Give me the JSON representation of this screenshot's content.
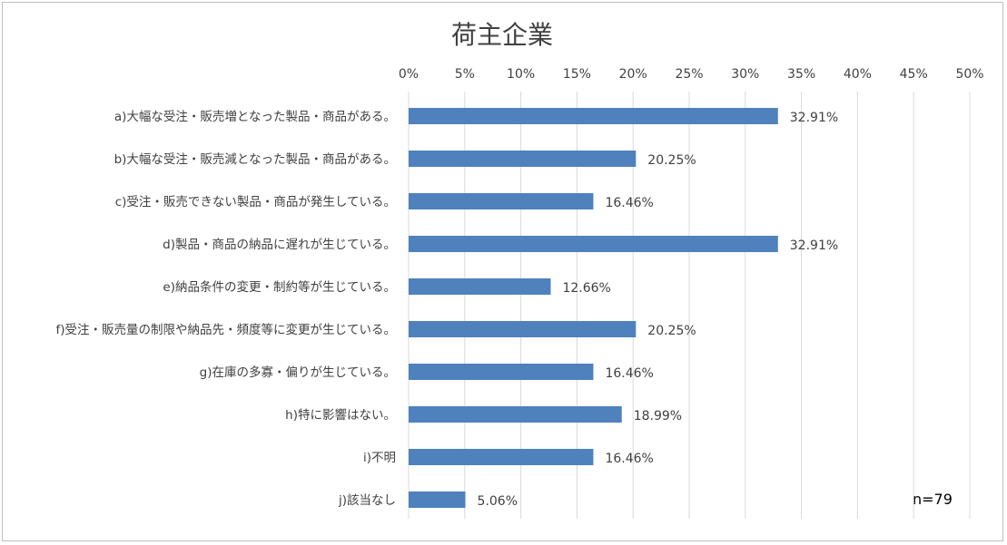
{
  "chart_data": {
    "type": "bar",
    "orientation": "horizontal",
    "title": "荷主企業",
    "note": "n=79",
    "xlim": [
      0,
      50
    ],
    "x_ticks": [
      "0%",
      "5%",
      "10%",
      "15%",
      "20%",
      "25%",
      "30%",
      "35%",
      "40%",
      "45%",
      "50%"
    ],
    "x_tick_values": [
      0,
      5,
      10,
      15,
      20,
      25,
      30,
      35,
      40,
      45,
      50
    ],
    "axis_position": "top",
    "grid": true,
    "bar_color": "#4f81bd",
    "categories": [
      "a)大幅な受注・販売増となった製品・商品がある。",
      "b)大幅な受注・販売減となった製品・商品がある。",
      "c)受注・販売できない製品・商品が発生している。",
      "d)製品・商品の納品に遅れが生じている。",
      "e)納品条件の変更・制約等が生じている。",
      "f)受注・販売量の制限や納品先・頻度等に変更が生じている。",
      "g)在庫の多寡・偏りが生じている。",
      "h)特に影響はない。",
      "i)不明",
      "j)該当なし"
    ],
    "values": [
      32.91,
      20.25,
      16.46,
      32.91,
      12.66,
      20.25,
      16.46,
      18.99,
      16.46,
      5.06
    ],
    "value_labels": [
      "32.91%",
      "20.25%",
      "16.46%",
      "32.91%",
      "12.66%",
      "20.25%",
      "16.46%",
      "18.99%",
      "16.46%",
      "5.06%"
    ]
  }
}
